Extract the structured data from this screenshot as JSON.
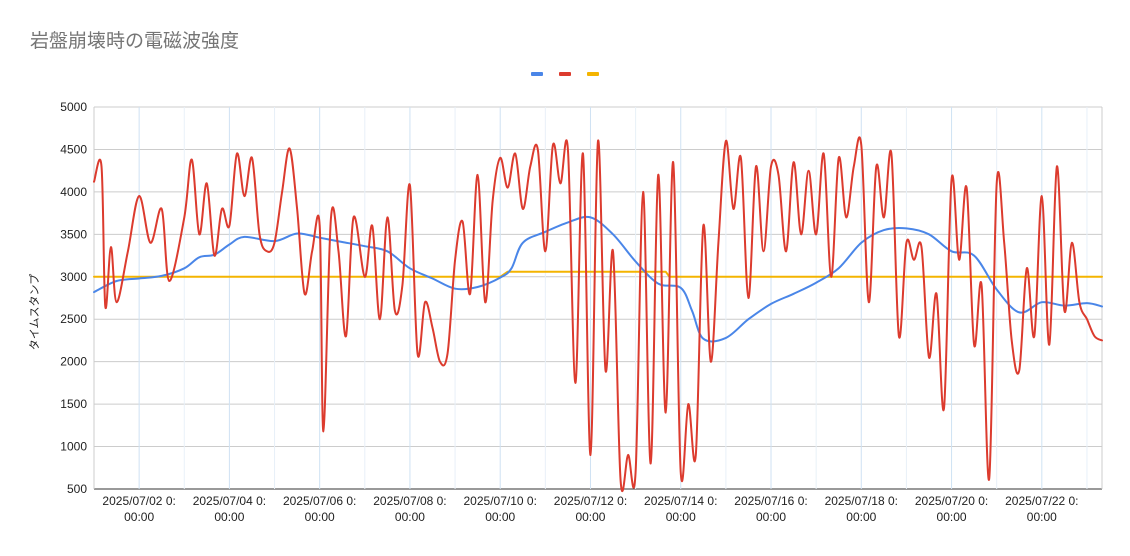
{
  "chart_data": {
    "type": "line",
    "title": "岩盤崩壊時の電磁波強度",
    "ylabel": "タイムスタンプ",
    "xlabel": "",
    "ylim": [
      500,
      5000
    ],
    "y_ticks": [
      "500",
      "1000",
      "1500",
      "2000",
      "2500",
      "3000",
      "3500",
      "4000",
      "4500",
      "5000"
    ],
    "x_tick_labels": [
      [
        "2025/07/02 0:",
        "00:00"
      ],
      [
        "2025/07/04 0:",
        "00:00"
      ],
      [
        "2025/07/06 0:",
        "00:00"
      ],
      [
        "2025/07/08 0:",
        "00:00"
      ],
      [
        "2025/07/10 0:",
        "00:00"
      ],
      [
        "2025/07/12 0:",
        "00:00"
      ],
      [
        "2025/07/14 0:",
        "00:00"
      ],
      [
        "2025/07/16 0:",
        "00:00"
      ],
      [
        "2025/07/18 0:",
        "00:00"
      ],
      [
        "2025/07/20 0:",
        "00:00"
      ],
      [
        "2025/07/22 0:",
        "00:00"
      ]
    ],
    "x_tick_dates": [
      "2025-07-02",
      "2025-07-04",
      "2025-07-06",
      "2025-07-08",
      "2025-07-10",
      "2025-07-12",
      "2025-07-14",
      "2025-07-16",
      "2025-07-18",
      "2025-07-20",
      "2025-07-22"
    ],
    "xlim": [
      "2025-07-01T00:00",
      "2025-07-23T08:00"
    ],
    "legend_position": "top",
    "grid": true,
    "series": [
      {
        "color": "#4a86e8",
        "points": [
          [
            "2025-07-01T00:00",
            2820
          ],
          [
            "2025-07-01T12:00",
            2950
          ],
          [
            "2025-07-02T00:00",
            2980
          ],
          [
            "2025-07-02T12:00",
            3010
          ],
          [
            "2025-07-03T00:00",
            3100
          ],
          [
            "2025-07-03T08:00",
            3230
          ],
          [
            "2025-07-03T16:00",
            3260
          ],
          [
            "2025-07-04T00:00",
            3380
          ],
          [
            "2025-07-04T08:00",
            3470
          ],
          [
            "2025-07-05T00:00",
            3420
          ],
          [
            "2025-07-05T12:00",
            3510
          ],
          [
            "2025-07-06T00:00",
            3460
          ],
          [
            "2025-07-06T12:00",
            3410
          ],
          [
            "2025-07-07T00:00",
            3360
          ],
          [
            "2025-07-07T12:00",
            3300
          ],
          [
            "2025-07-08T00:00",
            3100
          ],
          [
            "2025-07-08T12:00",
            2980
          ],
          [
            "2025-07-09T00:00",
            2860
          ],
          [
            "2025-07-09T12:00",
            2880
          ],
          [
            "2025-07-10T00:00",
            2990
          ],
          [
            "2025-07-10T06:00",
            3100
          ],
          [
            "2025-07-10T12:00",
            3400
          ],
          [
            "2025-07-11T00:00",
            3530
          ],
          [
            "2025-07-11T12:00",
            3640
          ],
          [
            "2025-07-12T00:00",
            3700
          ],
          [
            "2025-07-12T12:00",
            3500
          ],
          [
            "2025-07-13T00:00",
            3180
          ],
          [
            "2025-07-13T12:00",
            2920
          ],
          [
            "2025-07-14T00:00",
            2870
          ],
          [
            "2025-07-14T06:00",
            2600
          ],
          [
            "2025-07-14T12:00",
            2270
          ],
          [
            "2025-07-15T00:00",
            2280
          ],
          [
            "2025-07-15T12:00",
            2500
          ],
          [
            "2025-07-16T00:00",
            2680
          ],
          [
            "2025-07-16T12:00",
            2800
          ],
          [
            "2025-07-17T00:00",
            2930
          ],
          [
            "2025-07-17T12:00",
            3100
          ],
          [
            "2025-07-18T00:00",
            3400
          ],
          [
            "2025-07-18T12:00",
            3550
          ],
          [
            "2025-07-19T00:00",
            3570
          ],
          [
            "2025-07-19T12:00",
            3500
          ],
          [
            "2025-07-20T00:00",
            3300
          ],
          [
            "2025-07-20T12:00",
            3250
          ],
          [
            "2025-07-21T00:00",
            2850
          ],
          [
            "2025-07-21T12:00",
            2580
          ],
          [
            "2025-07-22T00:00",
            2700
          ],
          [
            "2025-07-22T12:00",
            2660
          ],
          [
            "2025-07-23T00:00",
            2690
          ],
          [
            "2025-07-23T08:00",
            2650
          ]
        ]
      },
      {
        "color": "#dc3b2e",
        "points": [
          [
            "2025-07-01T00:00",
            4120
          ],
          [
            "2025-07-01T04:00",
            4300
          ],
          [
            "2025-07-01T06:00",
            2650
          ],
          [
            "2025-07-01T09:00",
            3350
          ],
          [
            "2025-07-01T12:00",
            2700
          ],
          [
            "2025-07-01T18:00",
            3300
          ],
          [
            "2025-07-02T00:00",
            3950
          ],
          [
            "2025-07-02T06:00",
            3400
          ],
          [
            "2025-07-02T12:00",
            3800
          ],
          [
            "2025-07-02T16:00",
            2950
          ],
          [
            "2025-07-03T00:00",
            3700
          ],
          [
            "2025-07-03T04:00",
            4380
          ],
          [
            "2025-07-03T08:00",
            3500
          ],
          [
            "2025-07-03T12:00",
            4100
          ],
          [
            "2025-07-03T16:00",
            3250
          ],
          [
            "2025-07-03T20:00",
            3800
          ],
          [
            "2025-07-04T00:00",
            3600
          ],
          [
            "2025-07-04T04:00",
            4450
          ],
          [
            "2025-07-04T08:00",
            3950
          ],
          [
            "2025-07-04T12:00",
            4400
          ],
          [
            "2025-07-04T16:00",
            3500
          ],
          [
            "2025-07-04T20:00",
            3300
          ],
          [
            "2025-07-05T00:00",
            3400
          ],
          [
            "2025-07-05T04:00",
            4000
          ],
          [
            "2025-07-05T08:00",
            4510
          ],
          [
            "2025-07-05T12:00",
            3800
          ],
          [
            "2025-07-05T16:00",
            2800
          ],
          [
            "2025-07-05T20:00",
            3300
          ],
          [
            "2025-07-06T00:00",
            3600
          ],
          [
            "2025-07-06T02:00",
            1180
          ],
          [
            "2025-07-06T06:00",
            3700
          ],
          [
            "2025-07-06T10:00",
            3300
          ],
          [
            "2025-07-06T14:00",
            2300
          ],
          [
            "2025-07-06T18:00",
            3700
          ],
          [
            "2025-07-07T00:00",
            3000
          ],
          [
            "2025-07-07T04:00",
            3600
          ],
          [
            "2025-07-07T08:00",
            2500
          ],
          [
            "2025-07-07T12:00",
            3700
          ],
          [
            "2025-07-07T16:00",
            2600
          ],
          [
            "2025-07-07T20:00",
            2900
          ],
          [
            "2025-07-08T00:00",
            4080
          ],
          [
            "2025-07-08T04:00",
            2100
          ],
          [
            "2025-07-08T08:00",
            2700
          ],
          [
            "2025-07-08T12:00",
            2400
          ],
          [
            "2025-07-08T16:00",
            2000
          ],
          [
            "2025-07-08T20:00",
            2100
          ],
          [
            "2025-07-09T00:00",
            3200
          ],
          [
            "2025-07-09T04:00",
            3650
          ],
          [
            "2025-07-09T08:00",
            2800
          ],
          [
            "2025-07-09T12:00",
            4200
          ],
          [
            "2025-07-09T16:00",
            2700
          ],
          [
            "2025-07-09T20:00",
            3900
          ],
          [
            "2025-07-10T00:00",
            4400
          ],
          [
            "2025-07-10T04:00",
            4050
          ],
          [
            "2025-07-10T08:00",
            4450
          ],
          [
            "2025-07-10T12:00",
            3800
          ],
          [
            "2025-07-10T16:00",
            4300
          ],
          [
            "2025-07-10T20:00",
            4500
          ],
          [
            "2025-07-11T00:00",
            3300
          ],
          [
            "2025-07-11T04:00",
            4550
          ],
          [
            "2025-07-11T08:00",
            4100
          ],
          [
            "2025-07-11T12:00",
            4500
          ],
          [
            "2025-07-11T16:00",
            1750
          ],
          [
            "2025-07-11T20:00",
            4450
          ],
          [
            "2025-07-12T00:00",
            900
          ],
          [
            "2025-07-12T04:00",
            4600
          ],
          [
            "2025-07-12T08:00",
            1900
          ],
          [
            "2025-07-12T12:00",
            3300
          ],
          [
            "2025-07-12T16:00",
            600
          ],
          [
            "2025-07-12T20:00",
            900
          ],
          [
            "2025-07-13T00:00",
            700
          ],
          [
            "2025-07-13T04:00",
            4000
          ],
          [
            "2025-07-13T08:00",
            800
          ],
          [
            "2025-07-13T12:00",
            4200
          ],
          [
            "2025-07-13T16:00",
            1400
          ],
          [
            "2025-07-13T20:00",
            4350
          ],
          [
            "2025-07-14T00:00",
            700
          ],
          [
            "2025-07-14T04:00",
            1500
          ],
          [
            "2025-07-14T08:00",
            900
          ],
          [
            "2025-07-14T12:00",
            3600
          ],
          [
            "2025-07-14T16:00",
            2000
          ],
          [
            "2025-07-14T20:00",
            3400
          ],
          [
            "2025-07-15T00:00",
            4600
          ],
          [
            "2025-07-15T04:00",
            3800
          ],
          [
            "2025-07-15T08:00",
            4400
          ],
          [
            "2025-07-15T12:00",
            2750
          ],
          [
            "2025-07-15T16:00",
            4300
          ],
          [
            "2025-07-15T20:00",
            3300
          ],
          [
            "2025-07-16T00:00",
            4300
          ],
          [
            "2025-07-16T04:00",
            4200
          ],
          [
            "2025-07-16T08:00",
            3300
          ],
          [
            "2025-07-16T12:00",
            4350
          ],
          [
            "2025-07-16T16:00",
            3500
          ],
          [
            "2025-07-16T20:00",
            4250
          ],
          [
            "2025-07-17T00:00",
            3500
          ],
          [
            "2025-07-17T04:00",
            4450
          ],
          [
            "2025-07-17T08:00",
            3000
          ],
          [
            "2025-07-17T12:00",
            4400
          ],
          [
            "2025-07-17T16:00",
            3700
          ],
          [
            "2025-07-17T20:00",
            4300
          ],
          [
            "2025-07-18T00:00",
            4550
          ],
          [
            "2025-07-18T04:00",
            2700
          ],
          [
            "2025-07-18T08:00",
            4300
          ],
          [
            "2025-07-18T12:00",
            3700
          ],
          [
            "2025-07-18T16:00",
            4450
          ],
          [
            "2025-07-18T20:00",
            2300
          ],
          [
            "2025-07-19T00:00",
            3400
          ],
          [
            "2025-07-19T04:00",
            3200
          ],
          [
            "2025-07-19T08:00",
            3350
          ],
          [
            "2025-07-19T12:00",
            2050
          ],
          [
            "2025-07-19T16:00",
            2800
          ],
          [
            "2025-07-19T20:00",
            1450
          ],
          [
            "2025-07-20T00:00",
            4150
          ],
          [
            "2025-07-20T04:00",
            3200
          ],
          [
            "2025-07-20T08:00",
            4050
          ],
          [
            "2025-07-20T12:00",
            2200
          ],
          [
            "2025-07-20T16:00",
            2900
          ],
          [
            "2025-07-20T20:00",
            620
          ],
          [
            "2025-07-21T00:00",
            4100
          ],
          [
            "2025-07-21T04:00",
            3400
          ],
          [
            "2025-07-21T08:00",
            2250
          ],
          [
            "2025-07-21T12:00",
            1900
          ],
          [
            "2025-07-21T16:00",
            3100
          ],
          [
            "2025-07-21T20:00",
            2300
          ],
          [
            "2025-07-22T00:00",
            3950
          ],
          [
            "2025-07-22T04:00",
            2200
          ],
          [
            "2025-07-22T08:00",
            4300
          ],
          [
            "2025-07-22T12:00",
            2600
          ],
          [
            "2025-07-22T16:00",
            3400
          ],
          [
            "2025-07-22T20:00",
            2700
          ],
          [
            "2025-07-23T00:00",
            2500
          ],
          [
            "2025-07-23T04:00",
            2300
          ],
          [
            "2025-07-23T08:00",
            2250
          ]
        ]
      },
      {
        "color": "#f4b400",
        "points": [
          [
            "2025-07-01T00:00",
            3000
          ],
          [
            "2025-07-10T00:00",
            3000
          ],
          [
            "2025-07-10T04:00",
            3060
          ],
          [
            "2025-07-13T16:00",
            3060
          ],
          [
            "2025-07-13T18:00",
            3000
          ],
          [
            "2025-07-23T08:00",
            3000
          ]
        ]
      }
    ]
  }
}
